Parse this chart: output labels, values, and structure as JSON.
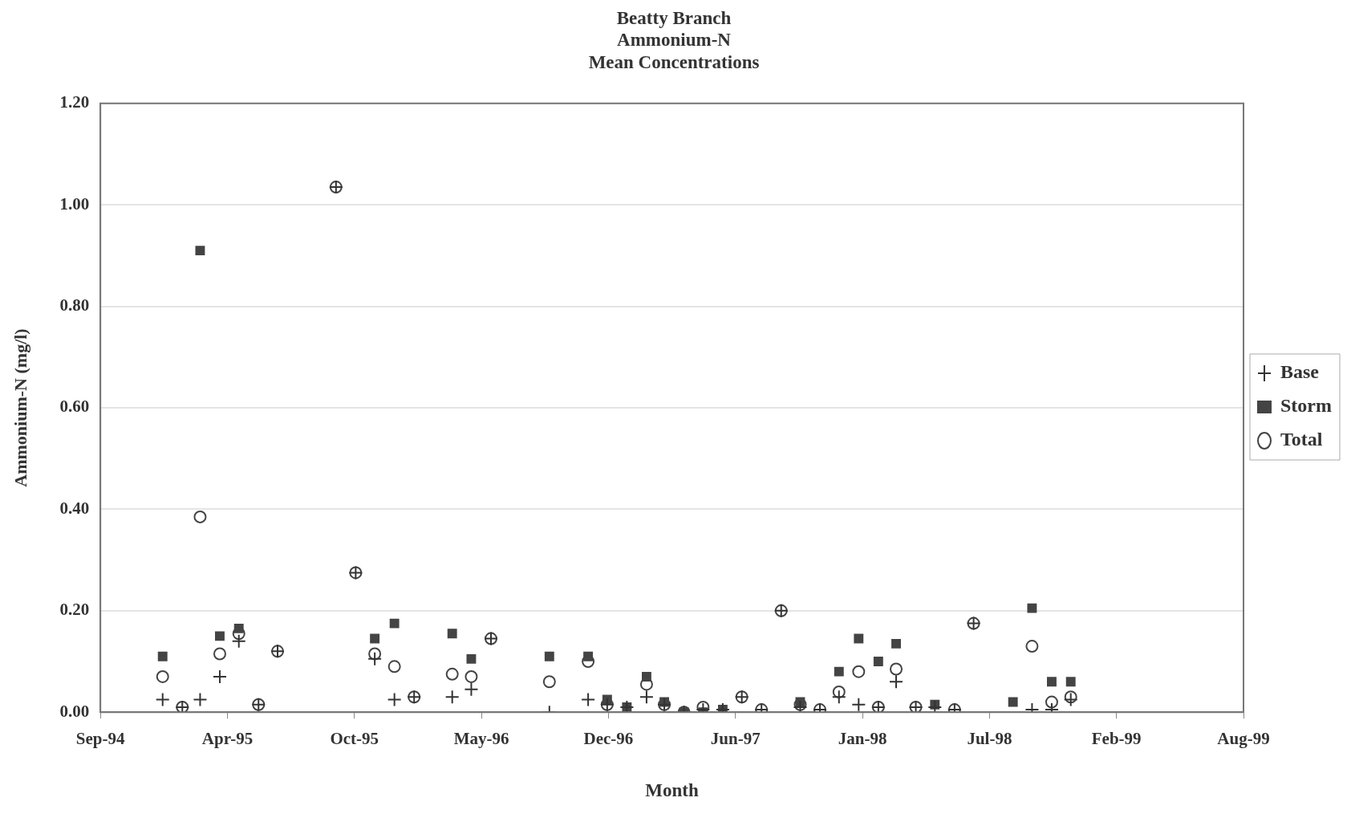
{
  "chart_data": {
    "type": "scatter",
    "title": "Beatty Branch\nAmmonium-N\nMean Concentrations",
    "xlabel": "Month",
    "ylabel": "Ammonium-N (mg/l)",
    "x": [
      "1995-01",
      "1995-02",
      "1995-03",
      "1995-04",
      "1995-05",
      "1995-06",
      "1995-07",
      "1995-10",
      "1995-11",
      "1995-12",
      "1996-01",
      "1996-02",
      "1996-04",
      "1996-05",
      "1996-06",
      "1996-09",
      "1996-11",
      "1996-12",
      "1997-01",
      "1997-02",
      "1997-03",
      "1997-04",
      "1997-05",
      "1997-06",
      "1997-07",
      "1997-08",
      "1997-09",
      "1997-10",
      "1997-11",
      "1997-12",
      "1998-01",
      "1998-02",
      "1998-03",
      "1998-04",
      "1998-05",
      "1998-06",
      "1998-07",
      "1998-09",
      "1998-10",
      "1998-11",
      "1998-12"
    ],
    "series": [
      {
        "name": "Base",
        "color": "#333333",
        "marker": "cross",
        "values": [
          0.025,
          0.01,
          0.025,
          0.07,
          0.14,
          0.015,
          0.12,
          1.035,
          0.275,
          0.105,
          0.025,
          0.03,
          0.03,
          0.045,
          0.145,
          0,
          0.025,
          0.015,
          0.01,
          0.03,
          0.015,
          0,
          0.005,
          0.005,
          0.03,
          0.005,
          0.2,
          0.01,
          0.005,
          0.03,
          0.015,
          0.01,
          0.06,
          0.01,
          0.01,
          0.005,
          0.175,
          null,
          0.005,
          0.005,
          0.025
        ]
      },
      {
        "name": "Storm",
        "color": "#444444",
        "marker": "square",
        "values": [
          0.11,
          null,
          0.91,
          0.15,
          0.165,
          null,
          null,
          null,
          null,
          0.145,
          0.175,
          null,
          0.155,
          0.105,
          null,
          0.11,
          0.11,
          0.025,
          0.01,
          0.07,
          0.02,
          0,
          0,
          0.005,
          null,
          null,
          null,
          0.02,
          null,
          0.08,
          0.145,
          0.1,
          0.135,
          null,
          0.015,
          null,
          null,
          0.02,
          0.205,
          0.06,
          0.06
        ]
      },
      {
        "name": "Total",
        "color": "#444444",
        "marker": "circle",
        "values": [
          0.07,
          0.01,
          0.385,
          0.115,
          0.155,
          0.015,
          0.12,
          1.035,
          0.275,
          0.115,
          0.09,
          0.03,
          0.075,
          0.07,
          0.145,
          0.06,
          0.1,
          0.015,
          null,
          0.055,
          0.015,
          0,
          0.01,
          null,
          0.03,
          0.005,
          0.2,
          0.015,
          0.005,
          0.04,
          0.08,
          0.01,
          0.085,
          0.01,
          null,
          0.005,
          0.175,
          null,
          0.13,
          0.02,
          0.03
        ]
      }
    ],
    "xlim": [
      "1994-09-25",
      "1999-08-30"
    ],
    "xticks": [
      {
        "value": "1994-09-25",
        "label": "Sep-94"
      },
      {
        "value": "1995-04-13",
        "label": "Apr-95"
      },
      {
        "value": "1995-10-30",
        "label": "Oct-95"
      },
      {
        "value": "1996-05-17",
        "label": "May-96"
      },
      {
        "value": "1996-12-03",
        "label": "Dec-96"
      },
      {
        "value": "1997-06-21",
        "label": "Jun-97"
      },
      {
        "value": "1998-01-07",
        "label": "Jan-98"
      },
      {
        "value": "1998-07-26",
        "label": "Jul-98"
      },
      {
        "value": "1999-02-11",
        "label": "Feb-99"
      },
      {
        "value": "1999-08-30",
        "label": "Aug-99"
      }
    ],
    "ylim": [
      0,
      1.2
    ],
    "yticks": [
      {
        "value": 0,
        "label": "0.00"
      },
      {
        "value": 0.2,
        "label": "0.20"
      },
      {
        "value": 0.4,
        "label": "0.40"
      },
      {
        "value": 0.6,
        "label": "0.60"
      },
      {
        "value": 0.8,
        "label": "0.80"
      },
      {
        "value": 1,
        "label": "1.00"
      },
      {
        "value": 1.2,
        "label": "1.20"
      }
    ],
    "grid": "y",
    "legend": "right"
  }
}
